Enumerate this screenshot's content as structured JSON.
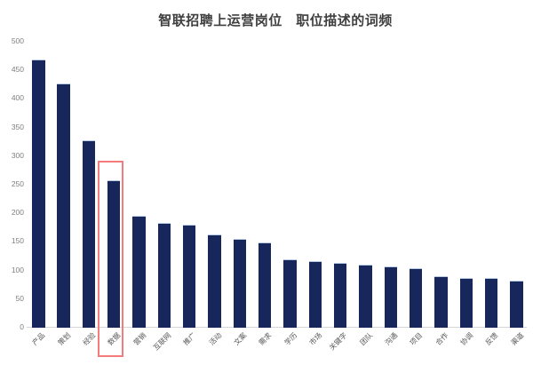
{
  "title": "智联招聘上运营岗位　职位描述的词频",
  "chart_data": {
    "type": "bar",
    "title": "智联招聘上运营岗位　职位描述的词频",
    "categories": [
      "产品",
      "策划",
      "经验",
      "数据",
      "营销",
      "互联网",
      "推广",
      "活动",
      "文案",
      "需求",
      "学历",
      "市场",
      "关键字",
      "团队",
      "沟通",
      "项目",
      "合作",
      "协调",
      "反馈",
      "渠道"
    ],
    "values": [
      467,
      425,
      326,
      256,
      194,
      181,
      179,
      162,
      154,
      147,
      118,
      115,
      112,
      109,
      106,
      102,
      88,
      86,
      85,
      81
    ],
    "xlabel": "",
    "ylabel": "",
    "ylim": [
      0,
      500
    ],
    "yticks": [
      500,
      450,
      400,
      350,
      300,
      250,
      200,
      150,
      100,
      50,
      0
    ],
    "grid": false,
    "legend": null,
    "bar_color": "#17275c",
    "axis_line_color": "#d6d6d6",
    "highlight": {
      "index": 3,
      "category": "数据",
      "box_color": "#f47c7c",
      "note": "red rectangle around 4th bar and its axis label"
    }
  }
}
